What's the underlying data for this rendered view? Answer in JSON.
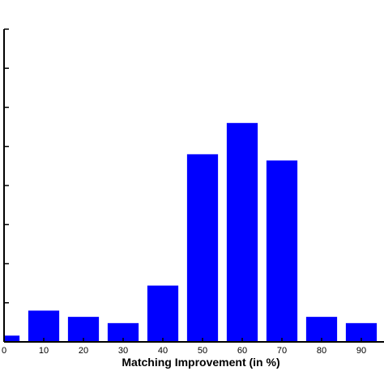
{
  "chart_data": {
    "type": "bar",
    "xlabel": "Matching Improvement (in %)",
    "ylabel": "",
    "title": "",
    "x_tick_labels": [
      "0",
      "10",
      "20",
      "30",
      "40",
      "50",
      "60",
      "70",
      "80",
      "90"
    ],
    "categories": [
      "0",
      "10",
      "20",
      "30",
      "40",
      "50",
      "60",
      "70",
      "80",
      "90"
    ],
    "values": [
      1,
      5,
      4,
      3,
      9,
      30,
      35,
      29,
      4,
      3
    ],
    "xlim": [
      -5,
      95
    ],
    "ylim": [
      0,
      50
    ],
    "y_ticks": [
      0,
      6.25,
      12.5,
      18.75,
      25,
      31.25,
      37.5,
      43.75,
      50
    ],
    "bar_color": "#0000ff",
    "grid": false
  }
}
